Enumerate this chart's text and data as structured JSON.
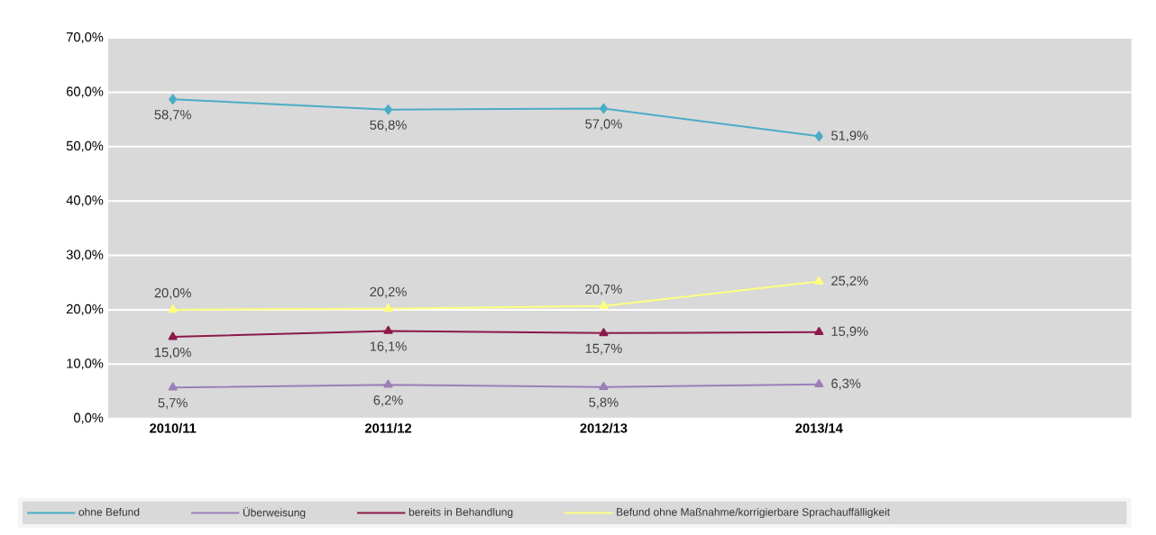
{
  "chart_data": {
    "type": "line",
    "categories": [
      "2010/11",
      "2011/12",
      "2012/13",
      "2013/14"
    ],
    "series": [
      {
        "name": "ohne Befund",
        "color": "#4bacc6",
        "marker": "diamond",
        "values": [
          58.7,
          56.8,
          57.0,
          51.9
        ],
        "value_labels": [
          "58,7%",
          "56,8%",
          "57,0%",
          "51,9%"
        ]
      },
      {
        "name": "Überweisung",
        "color": "#9b7fb8",
        "marker": "triangle",
        "values": [
          5.7,
          6.2,
          5.8,
          6.3
        ],
        "value_labels": [
          "5,7%",
          "6,2%",
          "5,8%",
          "6,3%"
        ]
      },
      {
        "name": "bereits in Behandlung",
        "color": "#8b1a4a",
        "marker": "triangle",
        "values": [
          15.0,
          16.1,
          15.7,
          15.9
        ],
        "value_labels": [
          "15,0%",
          "16,1%",
          "15,7%",
          "15,9%"
        ]
      },
      {
        "name": "Befund ohne Maßnahme/korrigierbare Sprachauffälligkeit",
        "color": "#ffff80",
        "marker": "triangle",
        "values": [
          20.0,
          20.2,
          20.7,
          25.2
        ],
        "value_labels": [
          "20,0%",
          "20,2%",
          "20,7%",
          "25,2%"
        ]
      }
    ],
    "ylim": [
      0,
      70
    ],
    "yticks": [
      {
        "value": 0,
        "label": "0,0%"
      },
      {
        "value": 10,
        "label": "10,0%"
      },
      {
        "value": 20,
        "label": "20,0%"
      },
      {
        "value": 30,
        "label": "30,0%"
      },
      {
        "value": 40,
        "label": "40,0%"
      },
      {
        "value": 50,
        "label": "50,0%"
      },
      {
        "value": 60,
        "label": "60,0%"
      },
      {
        "value": 70,
        "label": "70,0%"
      }
    ],
    "grid": "y",
    "legend": "bottom",
    "line_style": "solid"
  }
}
